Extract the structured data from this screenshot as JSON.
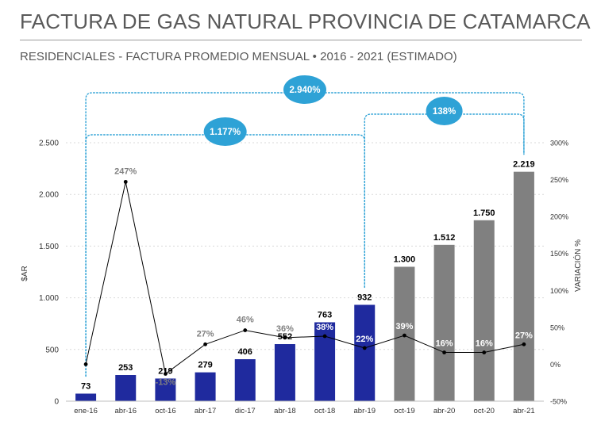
{
  "header": {
    "title": "FACTURA DE GAS NATURAL PROVINCIA DE CATAMARCA",
    "subtitle": "RESIDENCIALES - FACTURA PROMEDIO MENSUAL • 2016 - 2021 (ESTIMADO)"
  },
  "colors": {
    "bar_actual": "#1f2a9e",
    "bar_estimated": "#808080",
    "variation_line": "#000000",
    "bubble": "#2ea2d6",
    "bracket": "#2ea2d6",
    "label_positive": "#808080",
    "label_on_bar": "#ffffff",
    "title_text": "#595959"
  },
  "chart_data": {
    "type": "bar",
    "categories": [
      "ene-16",
      "abr-16",
      "oct-16",
      "abr-17",
      "dic-17",
      "abr-18",
      "oct-18",
      "abr-19",
      "oct-19",
      "abr-20",
      "oct-20",
      "abr-21"
    ],
    "series": [
      {
        "axis": "left",
        "type": "bar",
        "values": [
          73,
          253,
          219,
          279,
          406,
          552,
          763,
          932,
          1300,
          1512,
          1750,
          2219
        ],
        "value_labels": [
          "73",
          "253",
          "219",
          "279",
          "406",
          "552",
          "763",
          "932",
          "1.300",
          "1.512",
          "1.750",
          "2.219"
        ],
        "bar_colors": [
          "actual",
          "actual",
          "actual",
          "actual",
          "actual",
          "actual",
          "actual",
          "actual",
          "estimated",
          "estimated",
          "estimated",
          "estimated"
        ]
      },
      {
        "axis": "right",
        "type": "line",
        "values": [
          0,
          247,
          -13,
          27,
          46,
          36,
          38,
          22,
          39,
          16,
          16,
          27
        ],
        "value_labels": [
          "",
          "247%",
          "-13%",
          "27%",
          "46%",
          "36%",
          "38%",
          "22%",
          "39%",
          "16%",
          "16%",
          "27%"
        ]
      }
    ],
    "ylabel": "$AR",
    "ylim": [
      0,
      2500
    ],
    "yticks": [
      0,
      500,
      1000,
      1500,
      2000,
      2500
    ],
    "ytick_labels": [
      "0",
      "500",
      "1.000",
      "1.500",
      "2.000",
      "2.500"
    ],
    "y2label": "VARIACIÓN %",
    "y2lim": [
      -50,
      300
    ],
    "y2ticks": [
      -50,
      0,
      50,
      100,
      150,
      200,
      250,
      300
    ],
    "y2tick_labels": [
      "-50%",
      "0%",
      "50%",
      "100%",
      "150%",
      "200%",
      "250%",
      "300%"
    ],
    "grid": true,
    "annotations": [
      {
        "label": "2.940%",
        "from": "ene-16",
        "to": "abr-21"
      },
      {
        "label": "1.177%",
        "from": "ene-16",
        "to": "abr-19"
      },
      {
        "label": "138%",
        "from": "abr-19",
        "to": "abr-21"
      }
    ]
  }
}
